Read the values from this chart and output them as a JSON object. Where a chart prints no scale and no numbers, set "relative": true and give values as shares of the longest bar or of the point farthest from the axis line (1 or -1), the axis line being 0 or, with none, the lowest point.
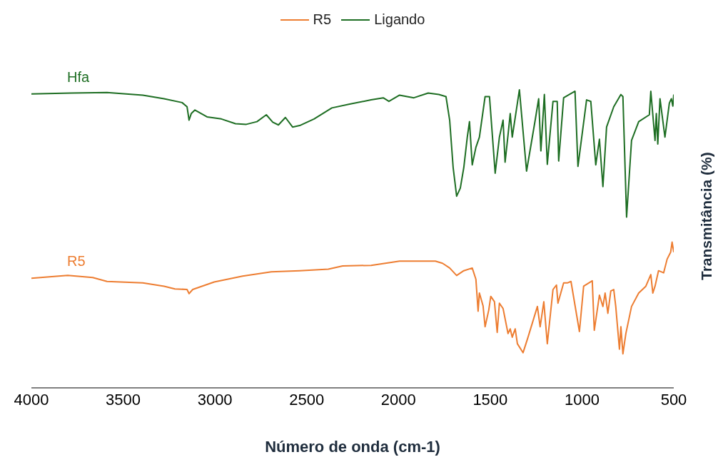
{
  "chart_data": {
    "type": "line",
    "relative": true,
    "xlabel": "Número de onda (cm-1)",
    "ylabel": "Transmitância (%)",
    "xlim": [
      4000,
      500
    ],
    "xticks": [
      4000,
      3500,
      3000,
      2500,
      2000,
      1500,
      1000,
      500
    ],
    "legend": "top",
    "grid": false,
    "marker": "none",
    "line_style": "solid",
    "annotations": [
      "R5",
      "Hfa"
    ],
    "series": [
      {
        "name": "R5",
        "color": "#ed7d31",
        "x": [
          4000,
          3802,
          3666,
          3588,
          3393,
          3277,
          3218,
          3152,
          3141,
          3121,
          3004,
          2849,
          2693,
          2538,
          2382,
          2304,
          2149,
          1994,
          1799,
          1760,
          1721,
          1683,
          1644,
          1598,
          1578,
          1566,
          1559,
          1539,
          1528,
          1508,
          1497,
          1477,
          1462,
          1450,
          1430,
          1403,
          1391,
          1380,
          1364,
          1352,
          1321,
          1294,
          1243,
          1228,
          1208,
          1189,
          1158,
          1139,
          1131,
          1100,
          1080,
          1060,
          1014,
          991,
          944,
          933,
          905,
          886,
          874,
          859,
          843,
          827,
          816,
          796,
          788,
          777,
          761,
          730,
          691,
          652,
          625,
          614,
          602,
          583,
          555,
          536,
          517,
          509,
          500
        ],
        "values": [
          0.368,
          0.377,
          0.37,
          0.357,
          0.352,
          0.341,
          0.332,
          0.33,
          0.316,
          0.33,
          0.355,
          0.375,
          0.389,
          0.393,
          0.398,
          0.409,
          0.411,
          0.425,
          0.425,
          0.418,
          0.402,
          0.377,
          0.393,
          0.402,
          0.364,
          0.257,
          0.318,
          0.275,
          0.205,
          0.261,
          0.307,
          0.289,
          0.186,
          0.284,
          0.266,
          0.182,
          0.198,
          0.17,
          0.198,
          0.148,
          0.118,
          0.17,
          0.273,
          0.205,
          0.289,
          0.148,
          0.33,
          0.345,
          0.284,
          0.352,
          0.352,
          0.357,
          0.189,
          0.341,
          0.359,
          0.193,
          0.311,
          0.273,
          0.318,
          0.25,
          0.325,
          0.33,
          0.273,
          0.13,
          0.205,
          0.114,
          0.182,
          0.273,
          0.318,
          0.341,
          0.38,
          0.318,
          0.341,
          0.393,
          0.386,
          0.432,
          0.455,
          0.489,
          0.455
        ]
      },
      {
        "name": "Ligando",
        "color": "#1e6e23",
        "x": [
          4000,
          3782,
          3588,
          3393,
          3277,
          3179,
          3152,
          3141,
          3129,
          3109,
          3043,
          2965,
          2888,
          2829,
          2771,
          2720,
          2685,
          2654,
          2616,
          2577,
          2538,
          2460,
          2363,
          2266,
          2149,
          2083,
          2052,
          1994,
          1916,
          1838,
          1780,
          1741,
          1721,
          1702,
          1683,
          1663,
          1644,
          1625,
          1613,
          1598,
          1578,
          1559,
          1528,
          1504,
          1473,
          1450,
          1430,
          1419,
          1403,
          1391,
          1380,
          1341,
          1302,
          1255,
          1236,
          1224,
          1205,
          1189,
          1158,
          1135,
          1127,
          1100,
          1038,
          1022,
          975,
          952,
          925,
          905,
          886,
          866,
          827,
          788,
          777,
          757,
          730,
          691,
          633,
          625,
          602,
          595,
          587,
          575,
          548,
          524,
          513,
          505,
          500
        ],
        "values": [
          0.986,
          0.989,
          0.991,
          0.982,
          0.97,
          0.957,
          0.943,
          0.898,
          0.92,
          0.932,
          0.909,
          0.902,
          0.886,
          0.884,
          0.893,
          0.916,
          0.891,
          0.882,
          0.907,
          0.875,
          0.88,
          0.902,
          0.939,
          0.952,
          0.966,
          0.973,
          0.961,
          0.982,
          0.973,
          0.989,
          0.984,
          0.977,
          0.898,
          0.739,
          0.643,
          0.67,
          0.739,
          0.841,
          0.893,
          0.748,
          0.807,
          0.841,
          0.977,
          0.977,
          0.72,
          0.841,
          0.898,
          0.757,
          0.848,
          0.92,
          0.841,
          1,
          0.727,
          0.898,
          0.97,
          0.795,
          0.984,
          0.75,
          0.961,
          0.961,
          0.761,
          0.973,
          0.995,
          0.743,
          0.966,
          0.961,
          0.748,
          0.834,
          0.675,
          0.875,
          0.943,
          0.984,
          0.977,
          0.573,
          0.83,
          0.893,
          0.916,
          0.995,
          0.83,
          0.92,
          0.818,
          0.97,
          0.841,
          0.955,
          0.97,
          0.945,
          0.984
        ]
      }
    ]
  }
}
